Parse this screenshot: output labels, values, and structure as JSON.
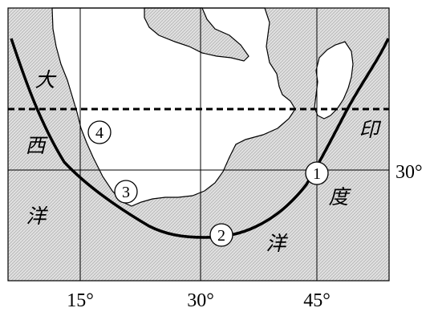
{
  "map": {
    "ocean_labels": {
      "atlantic_1": "大",
      "atlantic_2": "西",
      "atlantic_3": "洋",
      "indian_1": "印",
      "indian_2": "度",
      "indian_3": "洋"
    },
    "longitude_labels": [
      "15°",
      "30°",
      "45°"
    ],
    "latitude_labels": [
      "30°"
    ],
    "points": [
      "1",
      "2",
      "3",
      "4"
    ],
    "colors": {
      "land": "#ffffff",
      "ocean_hatch": "#b8b8b8",
      "ocean_bg": "#e6e6e6",
      "line": "#000000"
    }
  }
}
